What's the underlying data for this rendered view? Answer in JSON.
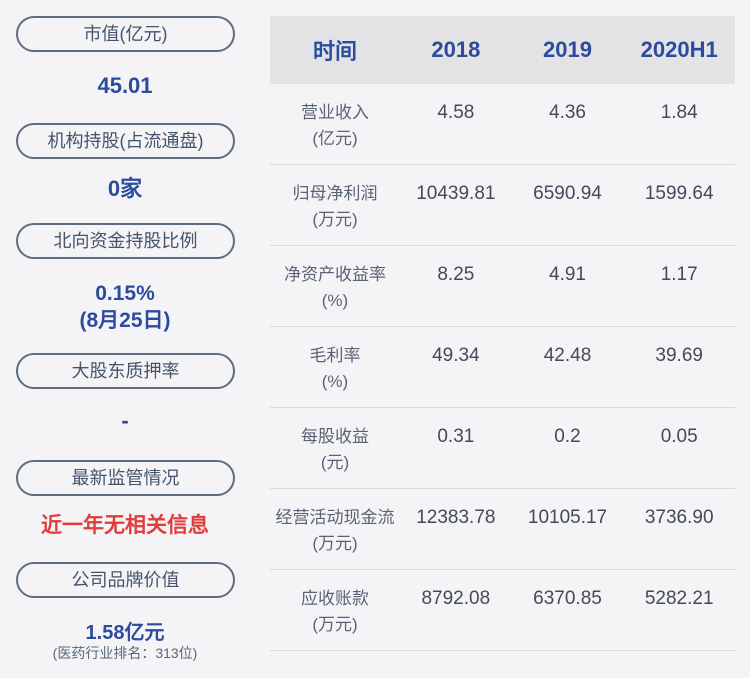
{
  "sidebar": {
    "items": [
      {
        "label": "市值(亿元)",
        "value": "45.01"
      },
      {
        "label": "机构持股(占流通盘)",
        "value": "0家"
      },
      {
        "label": "北向资金持股比例",
        "value": "0.15%",
        "value_sub": "(8月25日)"
      },
      {
        "label": "大股东质押率",
        "value": "-"
      },
      {
        "label": "最新监管情况",
        "value": "近一年无相关信息"
      },
      {
        "label": "公司品牌价值",
        "value": "1.58亿元",
        "value_sub": "(医药行业排名：313位)"
      }
    ]
  },
  "table": {
    "header": {
      "time_label": "时间",
      "columns": [
        "2018",
        "2019",
        "2020H1"
      ]
    },
    "rows": [
      {
        "name": "营业收入",
        "unit": "(亿元)",
        "values": [
          "4.58",
          "4.36",
          "1.84"
        ]
      },
      {
        "name": "归母净利润",
        "unit": "(万元)",
        "values": [
          "10439.81",
          "6590.94",
          "1599.64"
        ]
      },
      {
        "name": "净资产收益率",
        "unit": "(%)",
        "values": [
          "8.25",
          "4.91",
          "1.17"
        ]
      },
      {
        "name": "毛利率",
        "unit": "(%)",
        "values": [
          "49.34",
          "42.48",
          "39.69"
        ]
      },
      {
        "name": "每股收益",
        "unit": "(元)",
        "values": [
          "0.31",
          "0.2",
          "0.05"
        ]
      },
      {
        "name": "经营活动现金流",
        "unit": "(万元)",
        "values": [
          "12383.78",
          "10105.17",
          "3736.90"
        ]
      },
      {
        "name": "应收账款",
        "unit": "(万元)",
        "values": [
          "8792.08",
          "6370.85",
          "5282.21"
        ]
      }
    ]
  },
  "colors": {
    "background": "#f4f4f6",
    "pill_border": "#5f6e7e",
    "pill_text": "#45536b",
    "accent_blue": "#2d4b9e",
    "alert_red": "#e23b3b",
    "table_header_bg": "#e3e3e5",
    "row_divider": "#dadadc",
    "row_label": "#5a6375",
    "cell_value": "#424a5a"
  }
}
